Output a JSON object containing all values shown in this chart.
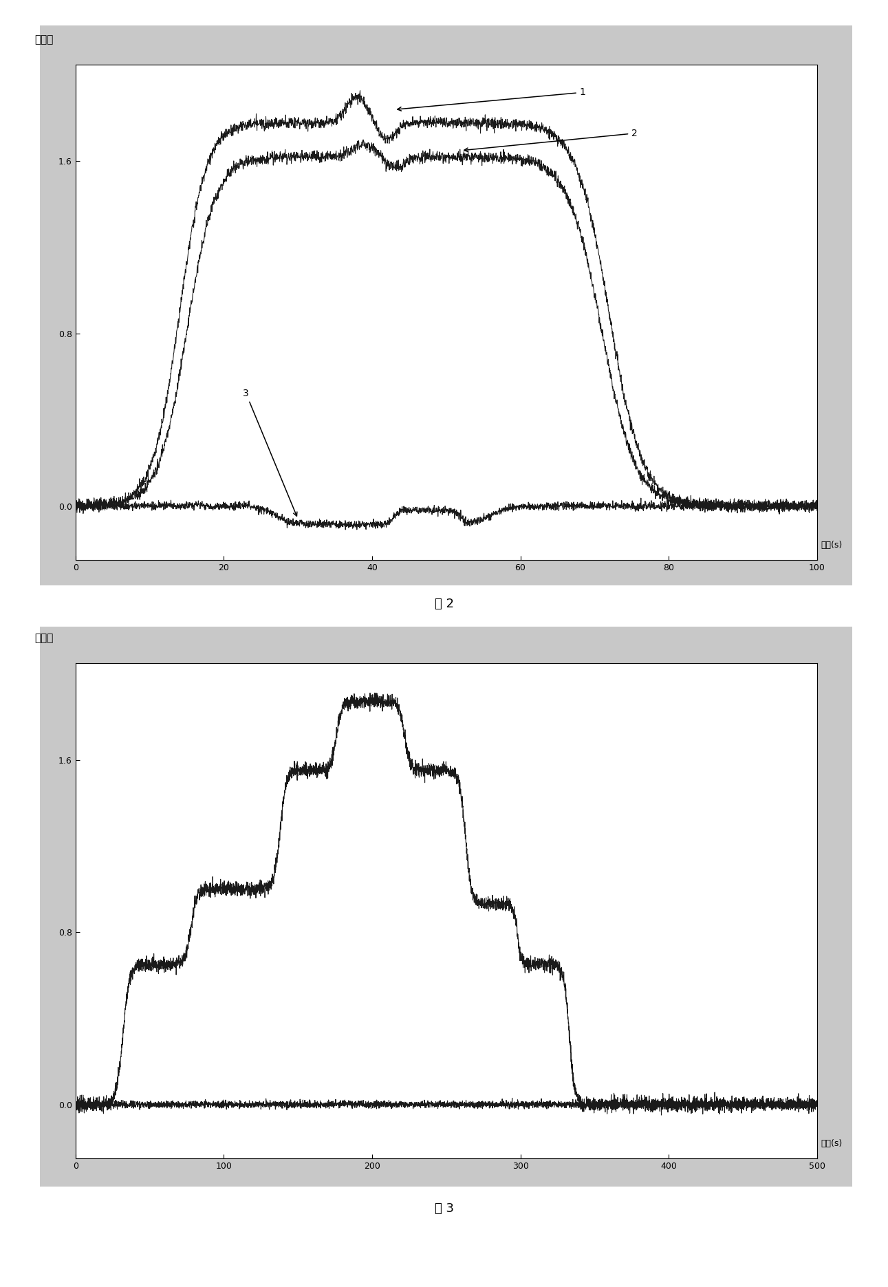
{
  "fig2": {
    "title_y": "吸光度",
    "xlabel": "时间(s)",
    "xlim": [
      0,
      100
    ],
    "ylim": [
      -0.25,
      2.05
    ],
    "xticks": [
      0,
      20,
      40,
      60,
      80,
      100
    ],
    "yticks": [
      0.0,
      0.8,
      1.6
    ],
    "caption": "图 2"
  },
  "fig3": {
    "title_y": "吸光度",
    "xlabel": "时间(s)",
    "xlim": [
      0,
      500
    ],
    "ylim": [
      -0.25,
      2.05
    ],
    "xticks": [
      0,
      100,
      200,
      300,
      400,
      500
    ],
    "yticks": [
      0.0,
      0.8,
      1.6
    ],
    "caption": "图 3"
  },
  "bg_color": "#ffffff",
  "plot_bg": "#ffffff",
  "line_color": "#1a1a1a",
  "outer_bg": "#d8d8d8"
}
